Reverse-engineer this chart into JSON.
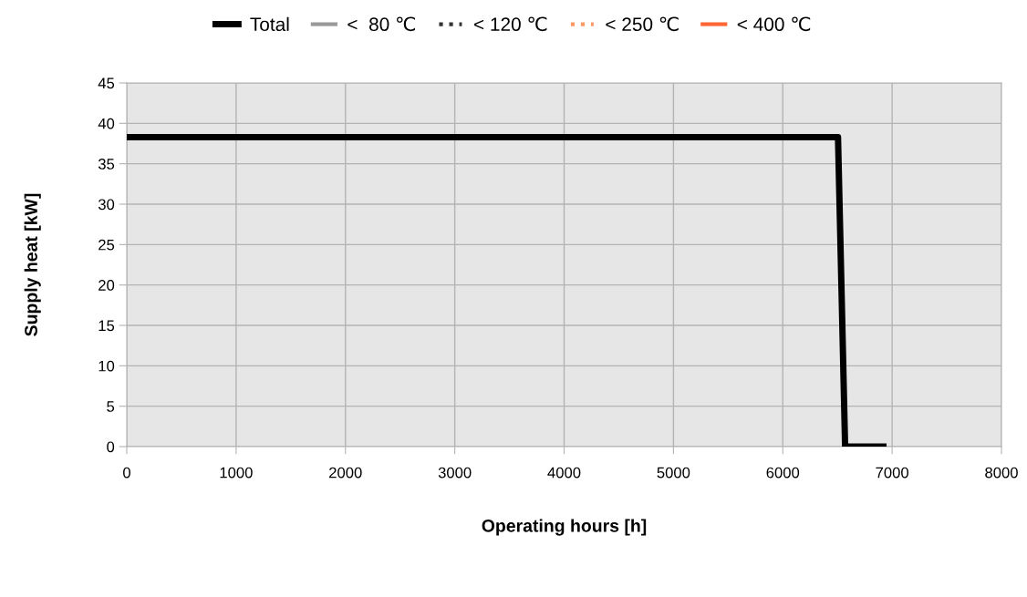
{
  "chart_data": {
    "type": "line",
    "xlabel": "Operating hours [h]",
    "ylabel": "Supply heat [kW]",
    "x": [
      0,
      6505,
      6570,
      6920
    ],
    "series": [
      {
        "name": "Total",
        "color": "#000000",
        "values": [
          38.3,
          38.3,
          0,
          0
        ]
      },
      {
        "name": "<  80 ℃",
        "color": "#999999",
        "values": [
          null,
          null,
          null,
          null
        ]
      },
      {
        "name": "< 120 ℃",
        "color": "#333333",
        "values": [
          null,
          null,
          null,
          null
        ],
        "line_style": "dotted"
      },
      {
        "name": "< 250 ℃",
        "color": "#ff9966",
        "values": [
          null,
          null,
          null,
          null
        ],
        "line_style": "dotted"
      },
      {
        "name": "< 400 ℃",
        "color": "#ff6633",
        "values": [
          null,
          null,
          null,
          null
        ]
      }
    ],
    "xlim": [
      0,
      8000
    ],
    "xticks": [
      0,
      1000,
      2000,
      3000,
      4000,
      5000,
      6000,
      7000,
      8000
    ],
    "ylim": [
      0,
      45
    ],
    "yticks": [
      0,
      5,
      10,
      15,
      20,
      25,
      30,
      35,
      40,
      45
    ],
    "grid": true,
    "legend": "top",
    "marker": "none",
    "line_style": "solid"
  }
}
